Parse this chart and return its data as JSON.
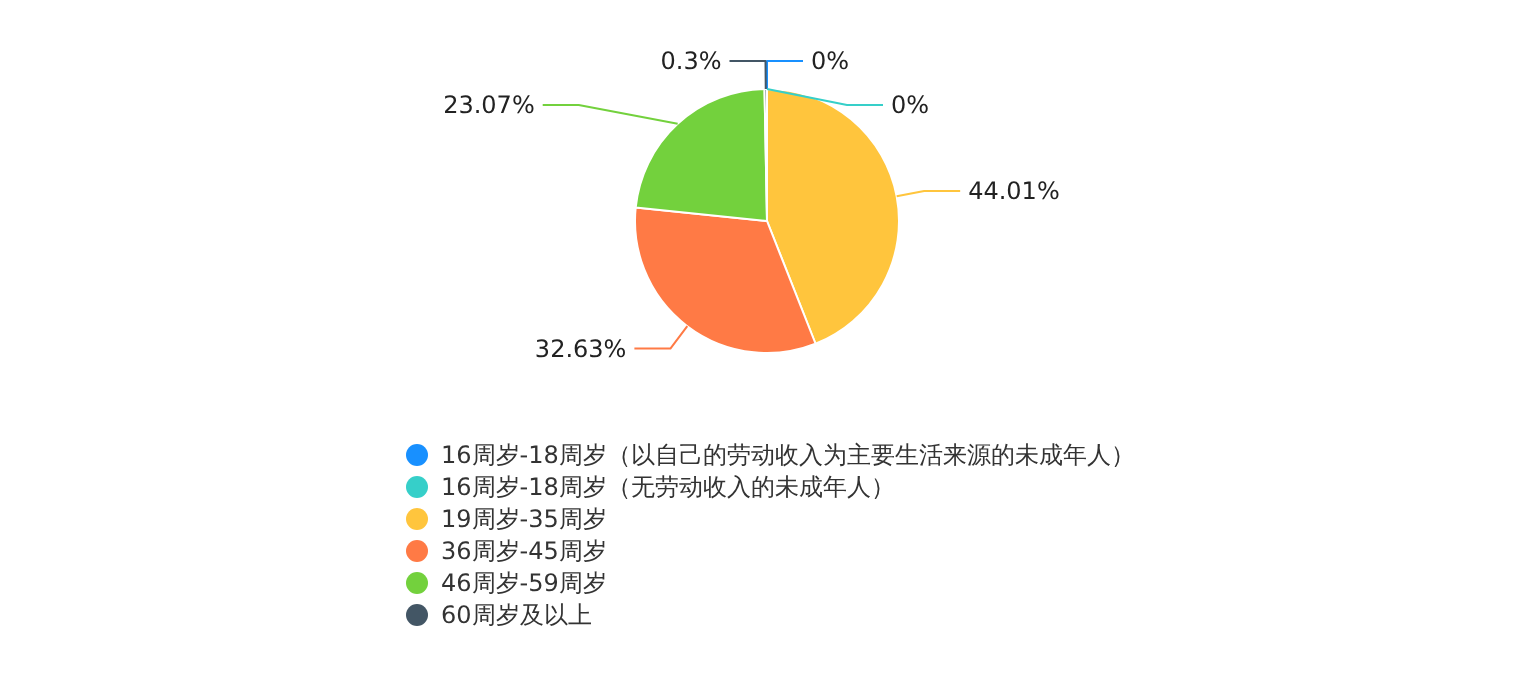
{
  "chart_data": {
    "type": "pie",
    "categories": [
      "16周岁-18周岁（以自己的劳动收入为主要生活来源的未成年人）",
      "16周岁-18周岁（无劳动收入的未成年人）",
      "19周岁-35周岁",
      "36周岁-45周岁",
      "46周岁-59周岁",
      "60周岁及以上"
    ],
    "values": [
      0,
      0,
      44.01,
      32.63,
      23.07,
      0.3
    ],
    "colors": [
      "#1890ff",
      "#36cfc9",
      "#ffc53d",
      "#ff7a45",
      "#73d13d",
      "#435665"
    ],
    "value_labels": [
      "0%",
      "0%",
      "44.01%",
      "32.63%",
      "23.07%",
      "0.3%"
    ],
    "legend": "bottom"
  }
}
